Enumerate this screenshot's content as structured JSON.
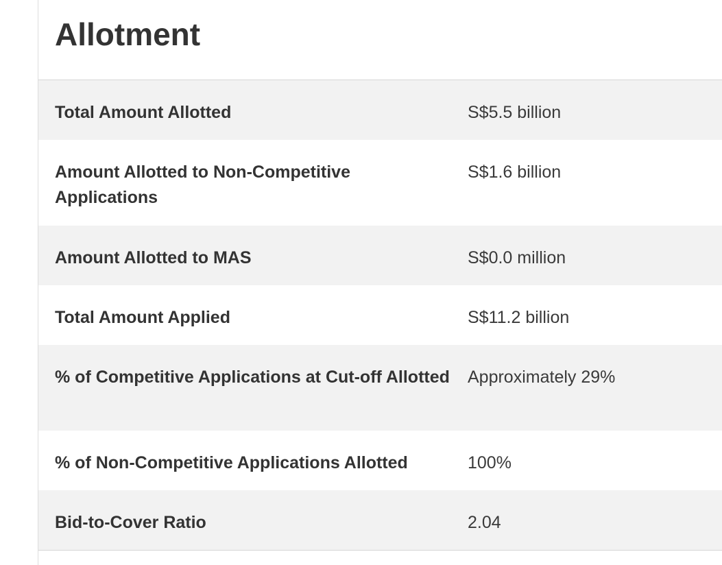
{
  "section": {
    "title": "Allotment"
  },
  "rows": [
    {
      "label": "Total Amount Allotted",
      "value": "S$5.5 billion"
    },
    {
      "label": "Amount Allotted to Non-Competitive Applications",
      "value": "S$1.6 billion"
    },
    {
      "label": "Amount Allotted to MAS",
      "value": "S$0.0 million"
    },
    {
      "label": "Total Amount Applied",
      "value": "S$11.2 billion"
    },
    {
      "label": "% of Competitive Applications at Cut-off Allotted",
      "value": "Approximately 29%"
    },
    {
      "label": "% of Non-Competitive Applications Allotted",
      "value": "100%"
    },
    {
      "label": "Bid-to-Cover Ratio",
      "value": "2.04"
    }
  ],
  "colors": {
    "stripe": "#f2f2f2",
    "text": "#333333",
    "divider": "#d6d6d6"
  }
}
